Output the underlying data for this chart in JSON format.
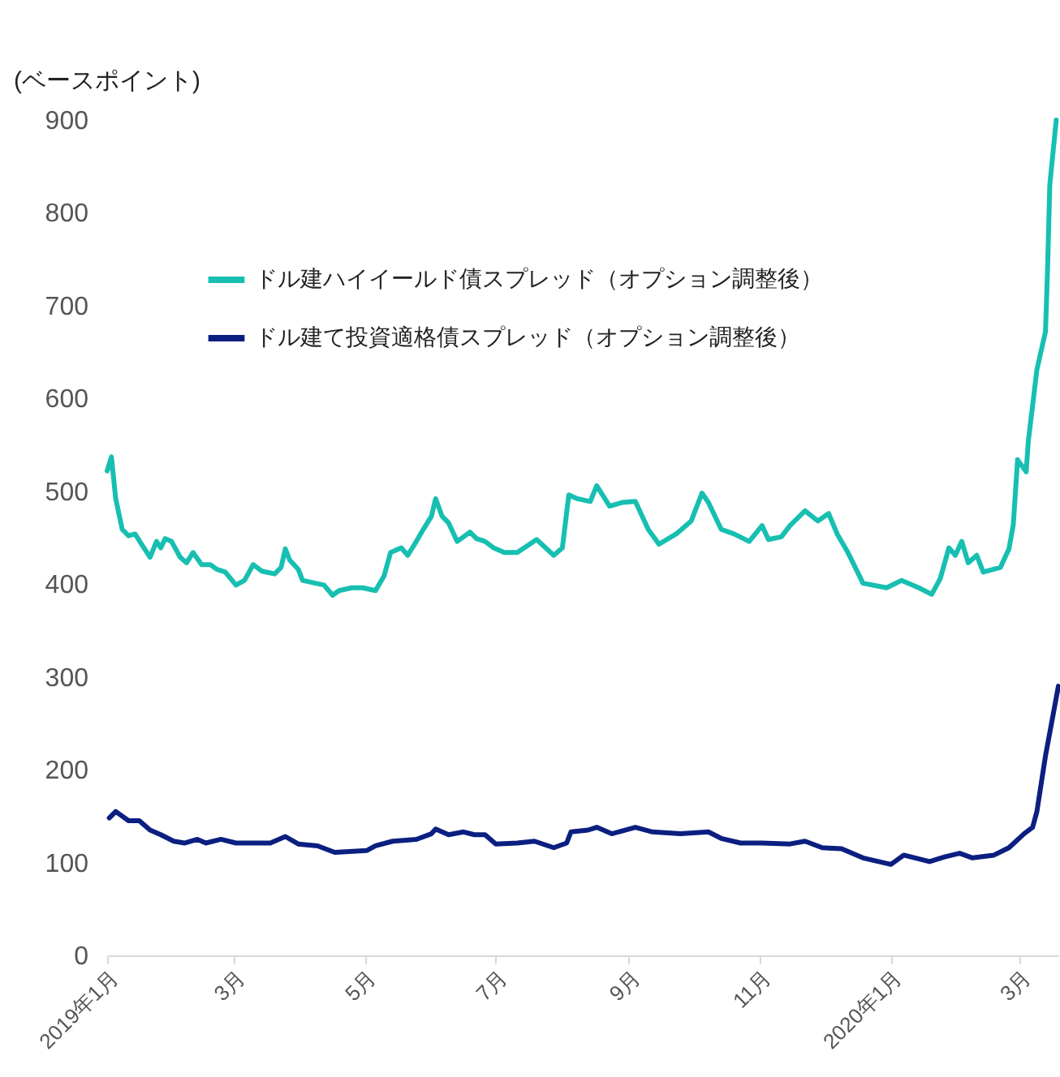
{
  "chart_data": {
    "type": "line",
    "ylabel": "(ベースポイント)",
    "xlim": [
      "2019-01-01",
      "2020-03-19"
    ],
    "ylim": [
      0,
      900
    ],
    "yticks": [
      0,
      100,
      200,
      300,
      400,
      500,
      600,
      700,
      800,
      900
    ],
    "xticks": [
      {
        "value": "2019-01-01",
        "label": "2019年1月"
      },
      {
        "value": "2019-03-01",
        "label": "3月"
      },
      {
        "value": "2019-05-01",
        "label": "5月"
      },
      {
        "value": "2019-07-01",
        "label": "7月"
      },
      {
        "value": "2019-09-01",
        "label": "9月"
      },
      {
        "value": "2019-11-01",
        "label": "11月"
      },
      {
        "value": "2020-01-01",
        "label": "2020年1月"
      },
      {
        "value": "2020-03-01",
        "label": "3月"
      }
    ],
    "grid": false,
    "legend": "top left",
    "marker": "none",
    "line_style": "solid",
    "series": [
      {
        "name": "ドル建ハイイールド債スプレッド（オプション調整後）",
        "color": "#17bfb1",
        "x": [
          "2019-01-01",
          "2019-01-03",
          "2019-01-05",
          "2019-01-08",
          "2019-01-11",
          "2019-01-14",
          "2019-01-17",
          "2019-01-21",
          "2019-01-24",
          "2019-01-26",
          "2019-01-28",
          "2019-01-31",
          "2019-02-04",
          "2019-02-07",
          "2019-02-10",
          "2019-02-14",
          "2019-02-18",
          "2019-02-21",
          "2019-02-25",
          "2019-03-02",
          "2019-03-06",
          "2019-03-10",
          "2019-03-14",
          "2019-03-20",
          "2019-03-23",
          "2019-03-25",
          "2019-03-27",
          "2019-03-31",
          "2019-04-02",
          "2019-04-08",
          "2019-04-12",
          "2019-04-16",
          "2019-04-19",
          "2019-04-25",
          "2019-04-30",
          "2019-05-06",
          "2019-05-10",
          "2019-05-13",
          "2019-05-18",
          "2019-05-21",
          "2019-05-25",
          "2019-05-28",
          "2019-06-01",
          "2019-06-03",
          "2019-06-06",
          "2019-06-09",
          "2019-06-13",
          "2019-06-19",
          "2019-06-22",
          "2019-06-26",
          "2019-06-30",
          "2019-07-05",
          "2019-07-11",
          "2019-07-20",
          "2019-07-28",
          "2019-08-01",
          "2019-08-04",
          "2019-08-08",
          "2019-08-14",
          "2019-08-17",
          "2019-08-23",
          "2019-08-29",
          "2019-09-04",
          "2019-09-10",
          "2019-09-15",
          "2019-09-23",
          "2019-09-30",
          "2019-10-05",
          "2019-10-08",
          "2019-10-14",
          "2019-10-20",
          "2019-10-27",
          "2019-11-02",
          "2019-11-05",
          "2019-11-11",
          "2019-11-15",
          "2019-11-22",
          "2019-11-28",
          "2019-12-03",
          "2019-12-07",
          "2019-12-12",
          "2019-12-19",
          "2019-12-30",
          "2020-01-06",
          "2020-01-14",
          "2020-01-20",
          "2020-01-24",
          "2020-01-28",
          "2020-01-31",
          "2020-02-03",
          "2020-02-06",
          "2020-02-10",
          "2020-02-13",
          "2020-02-21",
          "2020-02-25",
          "2020-02-27",
          "2020-02-29",
          "2020-03-04",
          "2020-03-05",
          "2020-03-09",
          "2020-03-13",
          "2020-03-14",
          "2020-03-15",
          "2020-03-18"
        ],
        "values": [
          522,
          537,
          492,
          459,
          452,
          454,
          443,
          429,
          446,
          439,
          449,
          446,
          429,
          423,
          434,
          421,
          421,
          416,
          413,
          399,
          404,
          421,
          414,
          411,
          418,
          438,
          426,
          416,
          404,
          401,
          399,
          388,
          393,
          396,
          396,
          393,
          409,
          434,
          439,
          431,
          446,
          458,
          473,
          492,
          473,
          466,
          446,
          456,
          449,
          446,
          439,
          434,
          434,
          448,
          431,
          439,
          496,
          492,
          489,
          506,
          484,
          488,
          489,
          459,
          443,
          454,
          468,
          498,
          488,
          459,
          454,
          446,
          463,
          448,
          451,
          463,
          479,
          468,
          476,
          454,
          434,
          401,
          396,
          404,
          396,
          389,
          406,
          439,
          431,
          446,
          423,
          431,
          413,
          418,
          438,
          464,
          534,
          521,
          554,
          631,
          672,
          742,
          830,
          900
        ]
      },
      {
        "name": "ドル建て投資適格債スプレッド（オプション調整後）",
        "color": "#0b1f80",
        "x": [
          "2019-01-02",
          "2019-01-05",
          "2019-01-11",
          "2019-01-16",
          "2019-01-21",
          "2019-01-26",
          "2019-02-01",
          "2019-02-06",
          "2019-02-12",
          "2019-02-16",
          "2019-02-23",
          "2019-03-02",
          "2019-03-18",
          "2019-03-25",
          "2019-03-31",
          "2019-04-09",
          "2019-04-17",
          "2019-05-02",
          "2019-05-06",
          "2019-05-14",
          "2019-05-25",
          "2019-06-01",
          "2019-06-03",
          "2019-06-09",
          "2019-06-16",
          "2019-06-21",
          "2019-06-26",
          "2019-07-01",
          "2019-07-11",
          "2019-07-19",
          "2019-07-28",
          "2019-08-03",
          "2019-08-05",
          "2019-08-13",
          "2019-08-17",
          "2019-08-24",
          "2019-09-04",
          "2019-09-12",
          "2019-09-25",
          "2019-10-08",
          "2019-10-14",
          "2019-10-23",
          "2019-11-02",
          "2019-11-15",
          "2019-11-22",
          "2019-11-30",
          "2019-12-09",
          "2019-12-19",
          "2020-01-01",
          "2020-01-07",
          "2020-01-19",
          "2020-01-26",
          "2020-02-02",
          "2020-02-08",
          "2020-02-18",
          "2020-02-25",
          "2020-03-03",
          "2020-03-07",
          "2020-03-09",
          "2020-03-13",
          "2020-03-19"
        ],
        "values": [
          148,
          155,
          145,
          145,
          135,
          130,
          123,
          121,
          125,
          121,
          125,
          121,
          121,
          128,
          120,
          118,
          111,
          113,
          118,
          123,
          125,
          131,
          136,
          130,
          133,
          130,
          130,
          120,
          121,
          123,
          116,
          121,
          133,
          135,
          138,
          131,
          138,
          133,
          131,
          133,
          126,
          121,
          121,
          120,
          123,
          116,
          115,
          105,
          98,
          108,
          101,
          106,
          110,
          105,
          108,
          116,
          131,
          138,
          155,
          215,
          290
        ]
      }
    ]
  }
}
